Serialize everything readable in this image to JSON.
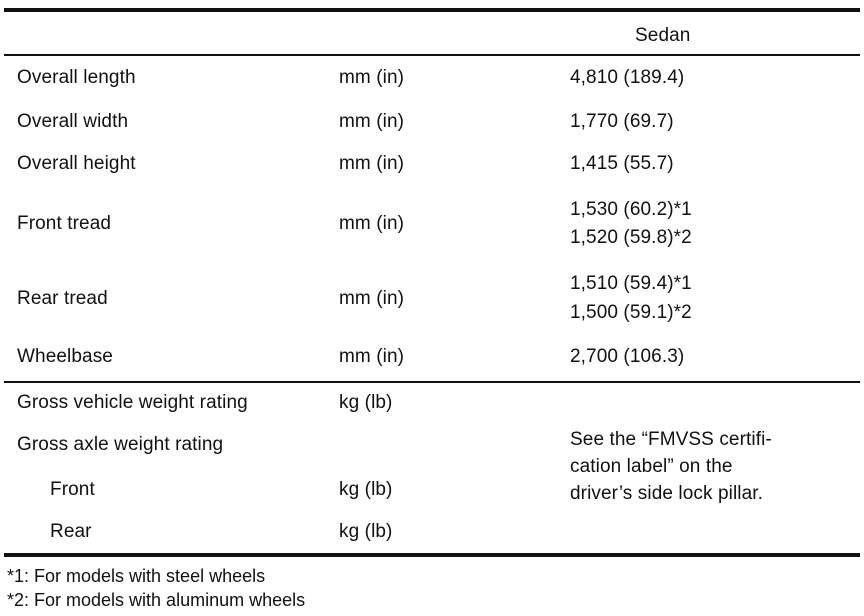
{
  "header": {
    "column_title": "Sedan"
  },
  "dimensions": [
    {
      "label": "Overall length",
      "unit": "mm (in)",
      "values": [
        "4,810 (189.4)"
      ]
    },
    {
      "label": "Overall width",
      "unit": "mm (in)",
      "values": [
        "1,770 (69.7)"
      ]
    },
    {
      "label": "Overall height",
      "unit": "mm (in)",
      "values": [
        "1,415 (55.7)"
      ]
    },
    {
      "label": "Front tread",
      "unit": "mm (in)",
      "values": [
        "1,530 (60.2)*1",
        "1,520 (59.8)*2"
      ]
    },
    {
      "label": "Rear tread",
      "unit": "mm (in)",
      "values": [
        "1,510 (59.4)*1",
        "1,500 (59.1)*2"
      ]
    },
    {
      "label": "Wheelbase",
      "unit": "mm (in)",
      "values": [
        "2,700 (106.3)"
      ]
    }
  ],
  "weights": {
    "gvwr": {
      "label": "Gross vehicle weight rating",
      "unit": "kg (lb)"
    },
    "gawr": {
      "label": "Gross axle weight rating"
    },
    "front": {
      "label": "Front",
      "unit": "kg (lb)"
    },
    "rear": {
      "label": "Rear",
      "unit": "kg (lb)"
    },
    "note_lines": [
      "See the “FMVSS certifi-",
      "cation label” on the",
      "driver’s side lock pillar."
    ]
  },
  "footnotes": [
    "*1: For models with steel wheels",
    "*2: For models with aluminum wheels"
  ]
}
